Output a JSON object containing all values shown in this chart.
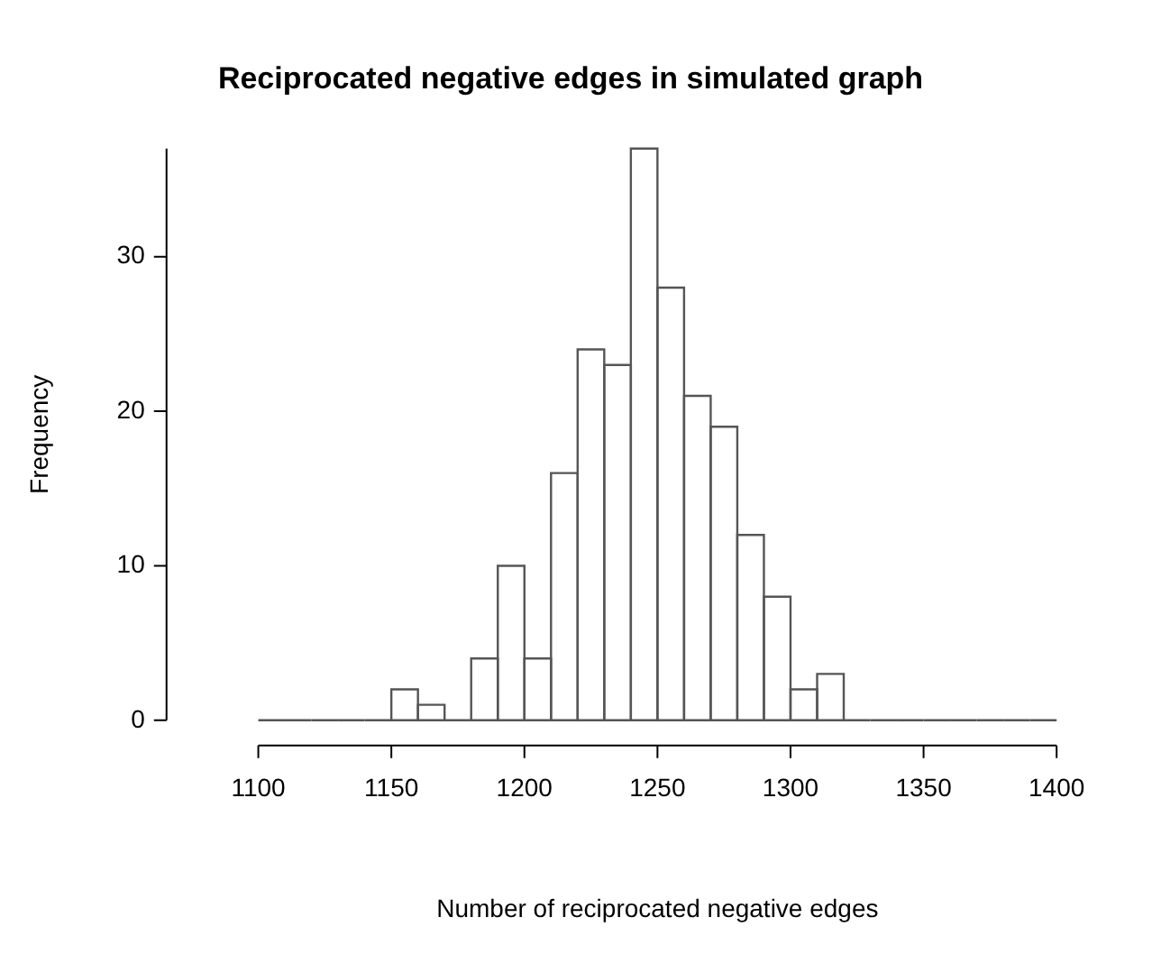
{
  "chart_data": {
    "type": "histogram",
    "title": "Reciprocated negative edges in simulated graph",
    "xlabel": "Number of reciprocated negative edges",
    "ylabel": "Frequency",
    "bins": [
      1100,
      1110,
      1120,
      1130,
      1140,
      1150,
      1160,
      1170,
      1180,
      1190,
      1200,
      1210,
      1220,
      1230,
      1240,
      1250,
      1260,
      1270,
      1280,
      1290,
      1300,
      1310,
      1320,
      1330,
      1340,
      1350,
      1360,
      1370,
      1380,
      1390,
      1400
    ],
    "values": [
      0,
      0,
      0,
      0,
      0,
      2,
      1,
      0,
      4,
      10,
      4,
      16,
      24,
      23,
      37,
      28,
      21,
      19,
      12,
      8,
      2,
      3,
      0,
      0,
      0,
      0,
      0,
      0,
      0,
      0
    ],
    "color": "#ffffff",
    "xlim": [
      1100,
      1400
    ],
    "xticks": [
      1100,
      1150,
      1200,
      1250,
      1300,
      1350,
      1400
    ],
    "ylim": [
      0,
      37
    ],
    "yticks": [
      0,
      10,
      20,
      30
    ],
    "grid": false,
    "legend": false
  }
}
